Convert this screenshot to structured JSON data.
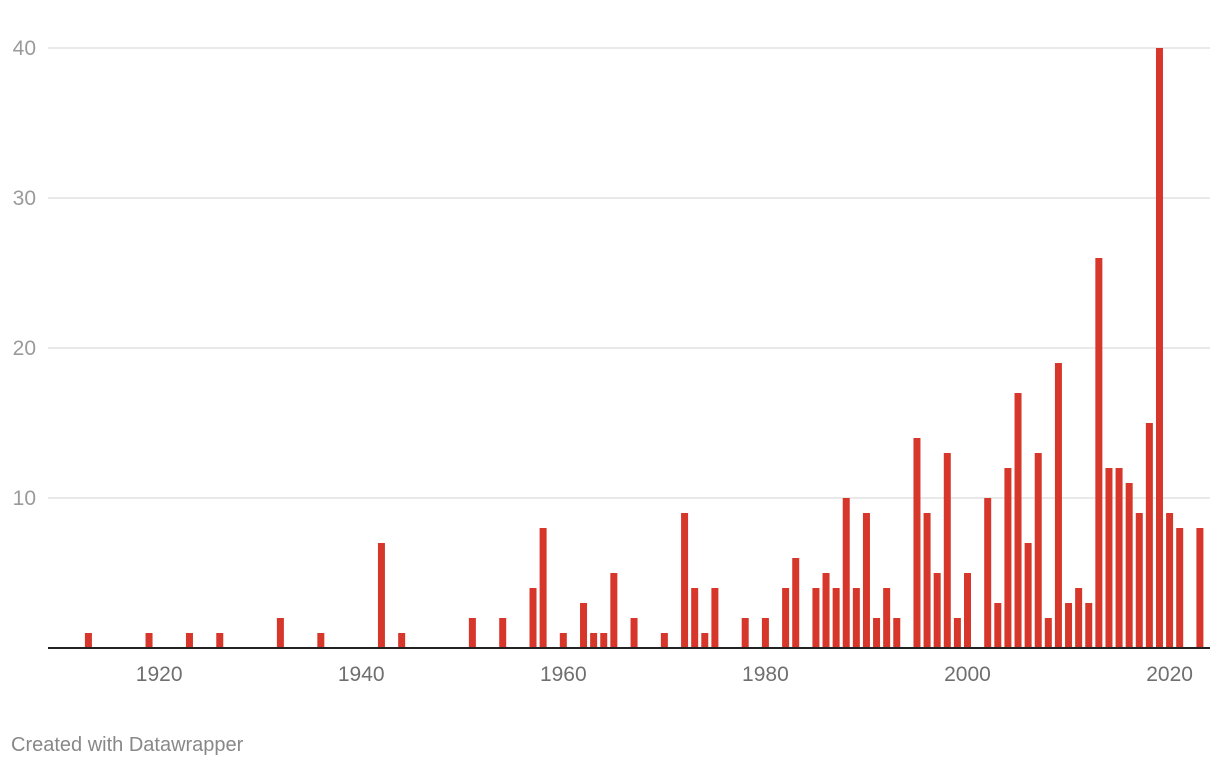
{
  "chart_data": {
    "type": "bar",
    "title": "",
    "xlabel": "",
    "ylabel": "",
    "ylim": [
      0,
      40
    ],
    "xlim": [
      1909,
      2024
    ],
    "grid": true,
    "colors": {
      "bar": "#d7362b"
    },
    "yticks": [
      {
        "value": 10,
        "label": "10"
      },
      {
        "value": 20,
        "label": "20"
      },
      {
        "value": 30,
        "label": "30"
      },
      {
        "value": 40,
        "label": "40"
      }
    ],
    "xticks": [
      {
        "value": 1920,
        "label": "1920"
      },
      {
        "value": 1940,
        "label": "1940"
      },
      {
        "value": 1960,
        "label": "1960"
      },
      {
        "value": 1980,
        "label": "1980"
      },
      {
        "value": 2000,
        "label": "2000"
      },
      {
        "value": 2020,
        "label": "2020"
      }
    ],
    "x": [
      1913,
      1919,
      1923,
      1926,
      1932,
      1936,
      1942,
      1944,
      1951,
      1954,
      1957,
      1958,
      1960,
      1962,
      1963,
      1964,
      1965,
      1967,
      1970,
      1972,
      1973,
      1974,
      1975,
      1978,
      1980,
      1982,
      1983,
      1985,
      1986,
      1987,
      1988,
      1989,
      1990,
      1991,
      1992,
      1993,
      1995,
      1996,
      1997,
      1998,
      1999,
      2000,
      2002,
      2003,
      2004,
      2005,
      2006,
      2007,
      2008,
      2009,
      2010,
      2011,
      2012,
      2013,
      2014,
      2015,
      2016,
      2017,
      2018,
      2019,
      2020,
      2021,
      2023
    ],
    "values": [
      1,
      1,
      1,
      1,
      2,
      1,
      7,
      1,
      2,
      2,
      4,
      8,
      1,
      3,
      1,
      1,
      5,
      2,
      1,
      9,
      4,
      1,
      4,
      2,
      2,
      4,
      6,
      4,
      5,
      4,
      10,
      4,
      9,
      2,
      4,
      2,
      14,
      9,
      5,
      13,
      2,
      5,
      10,
      3,
      12,
      17,
      7,
      13,
      2,
      19,
      3,
      4,
      3,
      26,
      12,
      12,
      11,
      9,
      15,
      40,
      9,
      8,
      8
    ]
  },
  "footer": {
    "credit": "Created with Datawrapper"
  }
}
